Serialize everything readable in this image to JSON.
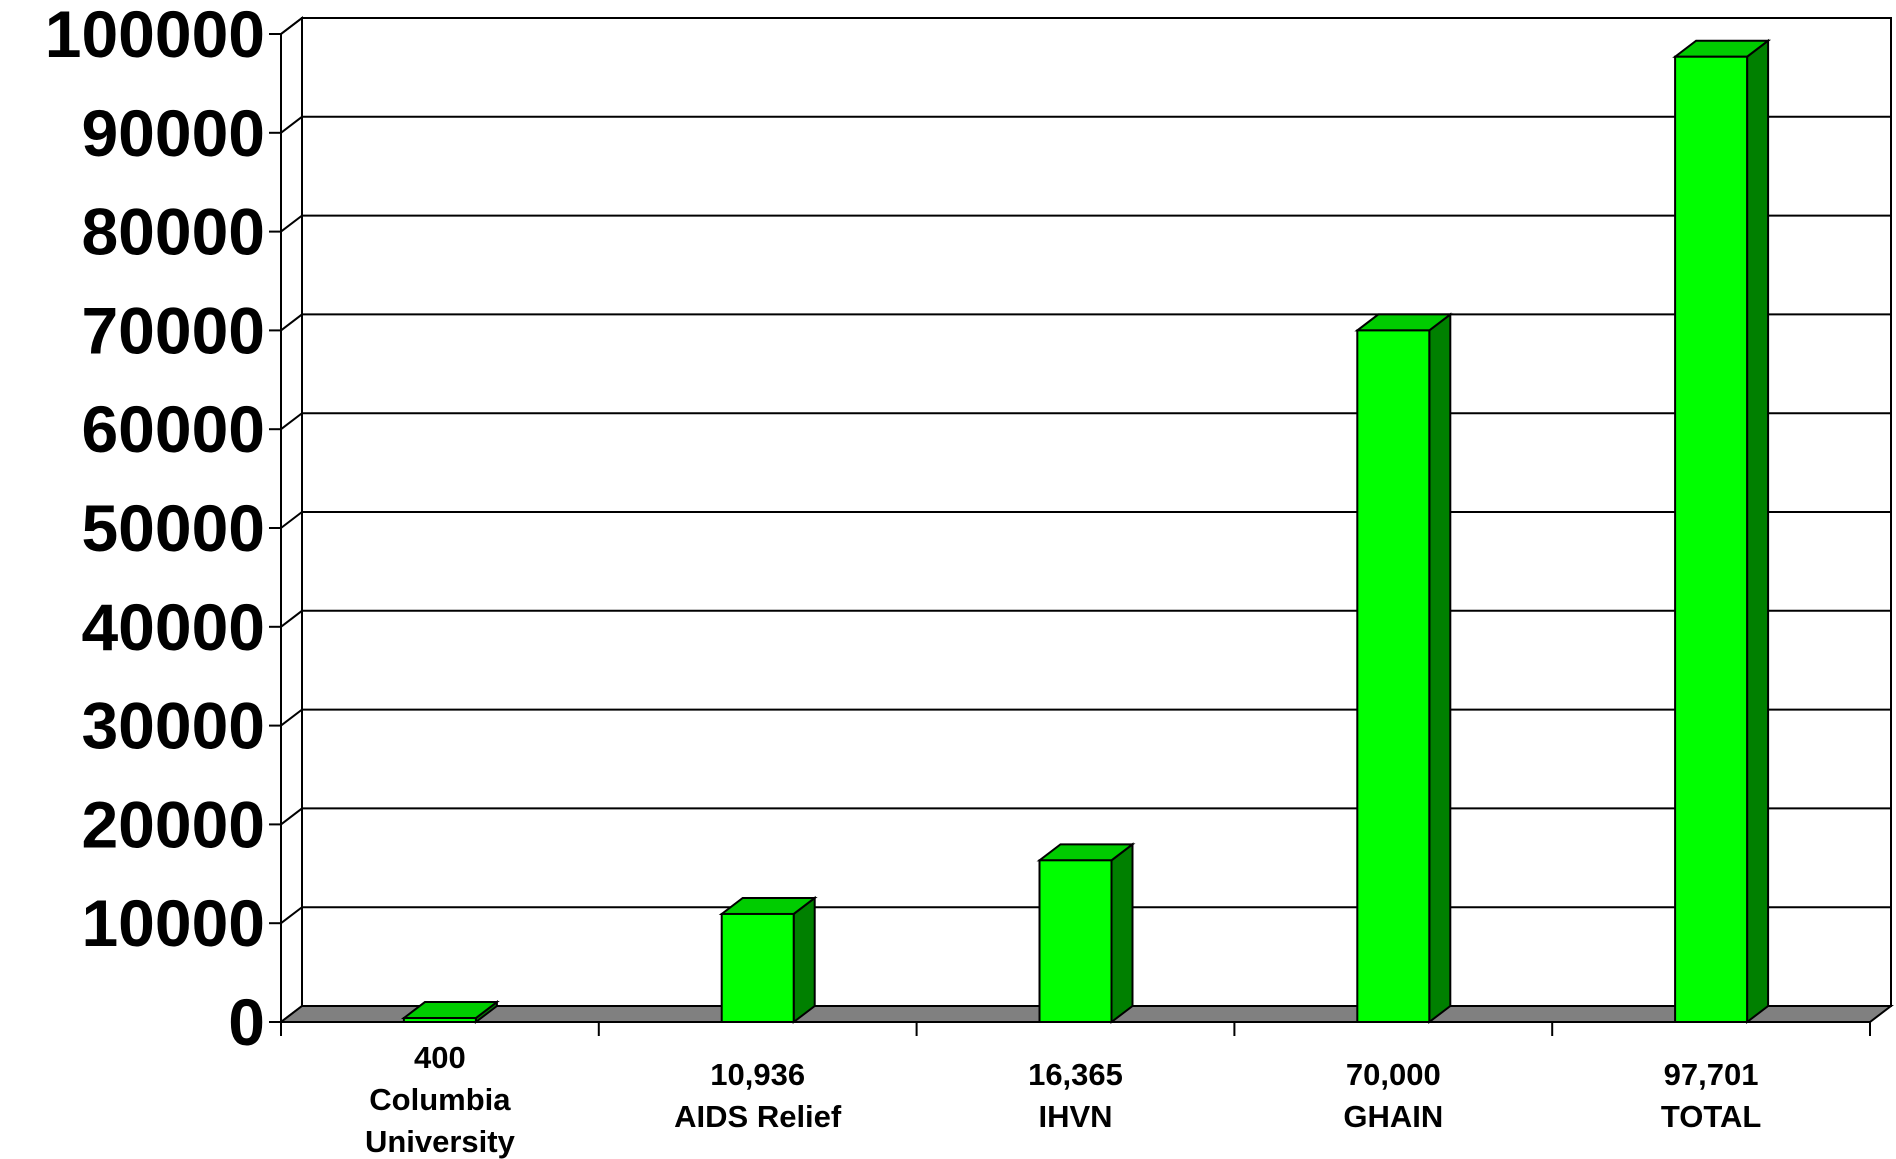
{
  "chart_data": {
    "type": "bar",
    "title": "",
    "xlabel": "",
    "ylabel": "",
    "ylim": [
      0,
      100000
    ],
    "yticks": [
      0,
      10000,
      20000,
      30000,
      40000,
      50000,
      60000,
      70000,
      80000,
      90000,
      100000
    ],
    "ytick_labels": [
      "0",
      "10000",
      "20000",
      "30000",
      "40000",
      "50000",
      "60000",
      "70000",
      "80000",
      "90000",
      "100000"
    ],
    "grid": true,
    "style": "3d",
    "colors": {
      "bar_front": "#00ff00",
      "bar_side": "#008000",
      "bar_top": "#00cc00",
      "floor": "#808080"
    },
    "categories": [
      {
        "value_label": "400",
        "name_lines": [
          "Columbia",
          "University"
        ]
      },
      {
        "value_label": "10,936",
        "name_lines": [
          "AIDS Relief"
        ]
      },
      {
        "value_label": "16,365",
        "name_lines": [
          "IHVN"
        ]
      },
      {
        "value_label": "70,000",
        "name_lines": [
          "GHAIN"
        ]
      },
      {
        "value_label": "97,701",
        "name_lines": [
          "TOTAL"
        ]
      }
    ],
    "values": [
      400,
      10936,
      16365,
      70000,
      97701
    ]
  }
}
